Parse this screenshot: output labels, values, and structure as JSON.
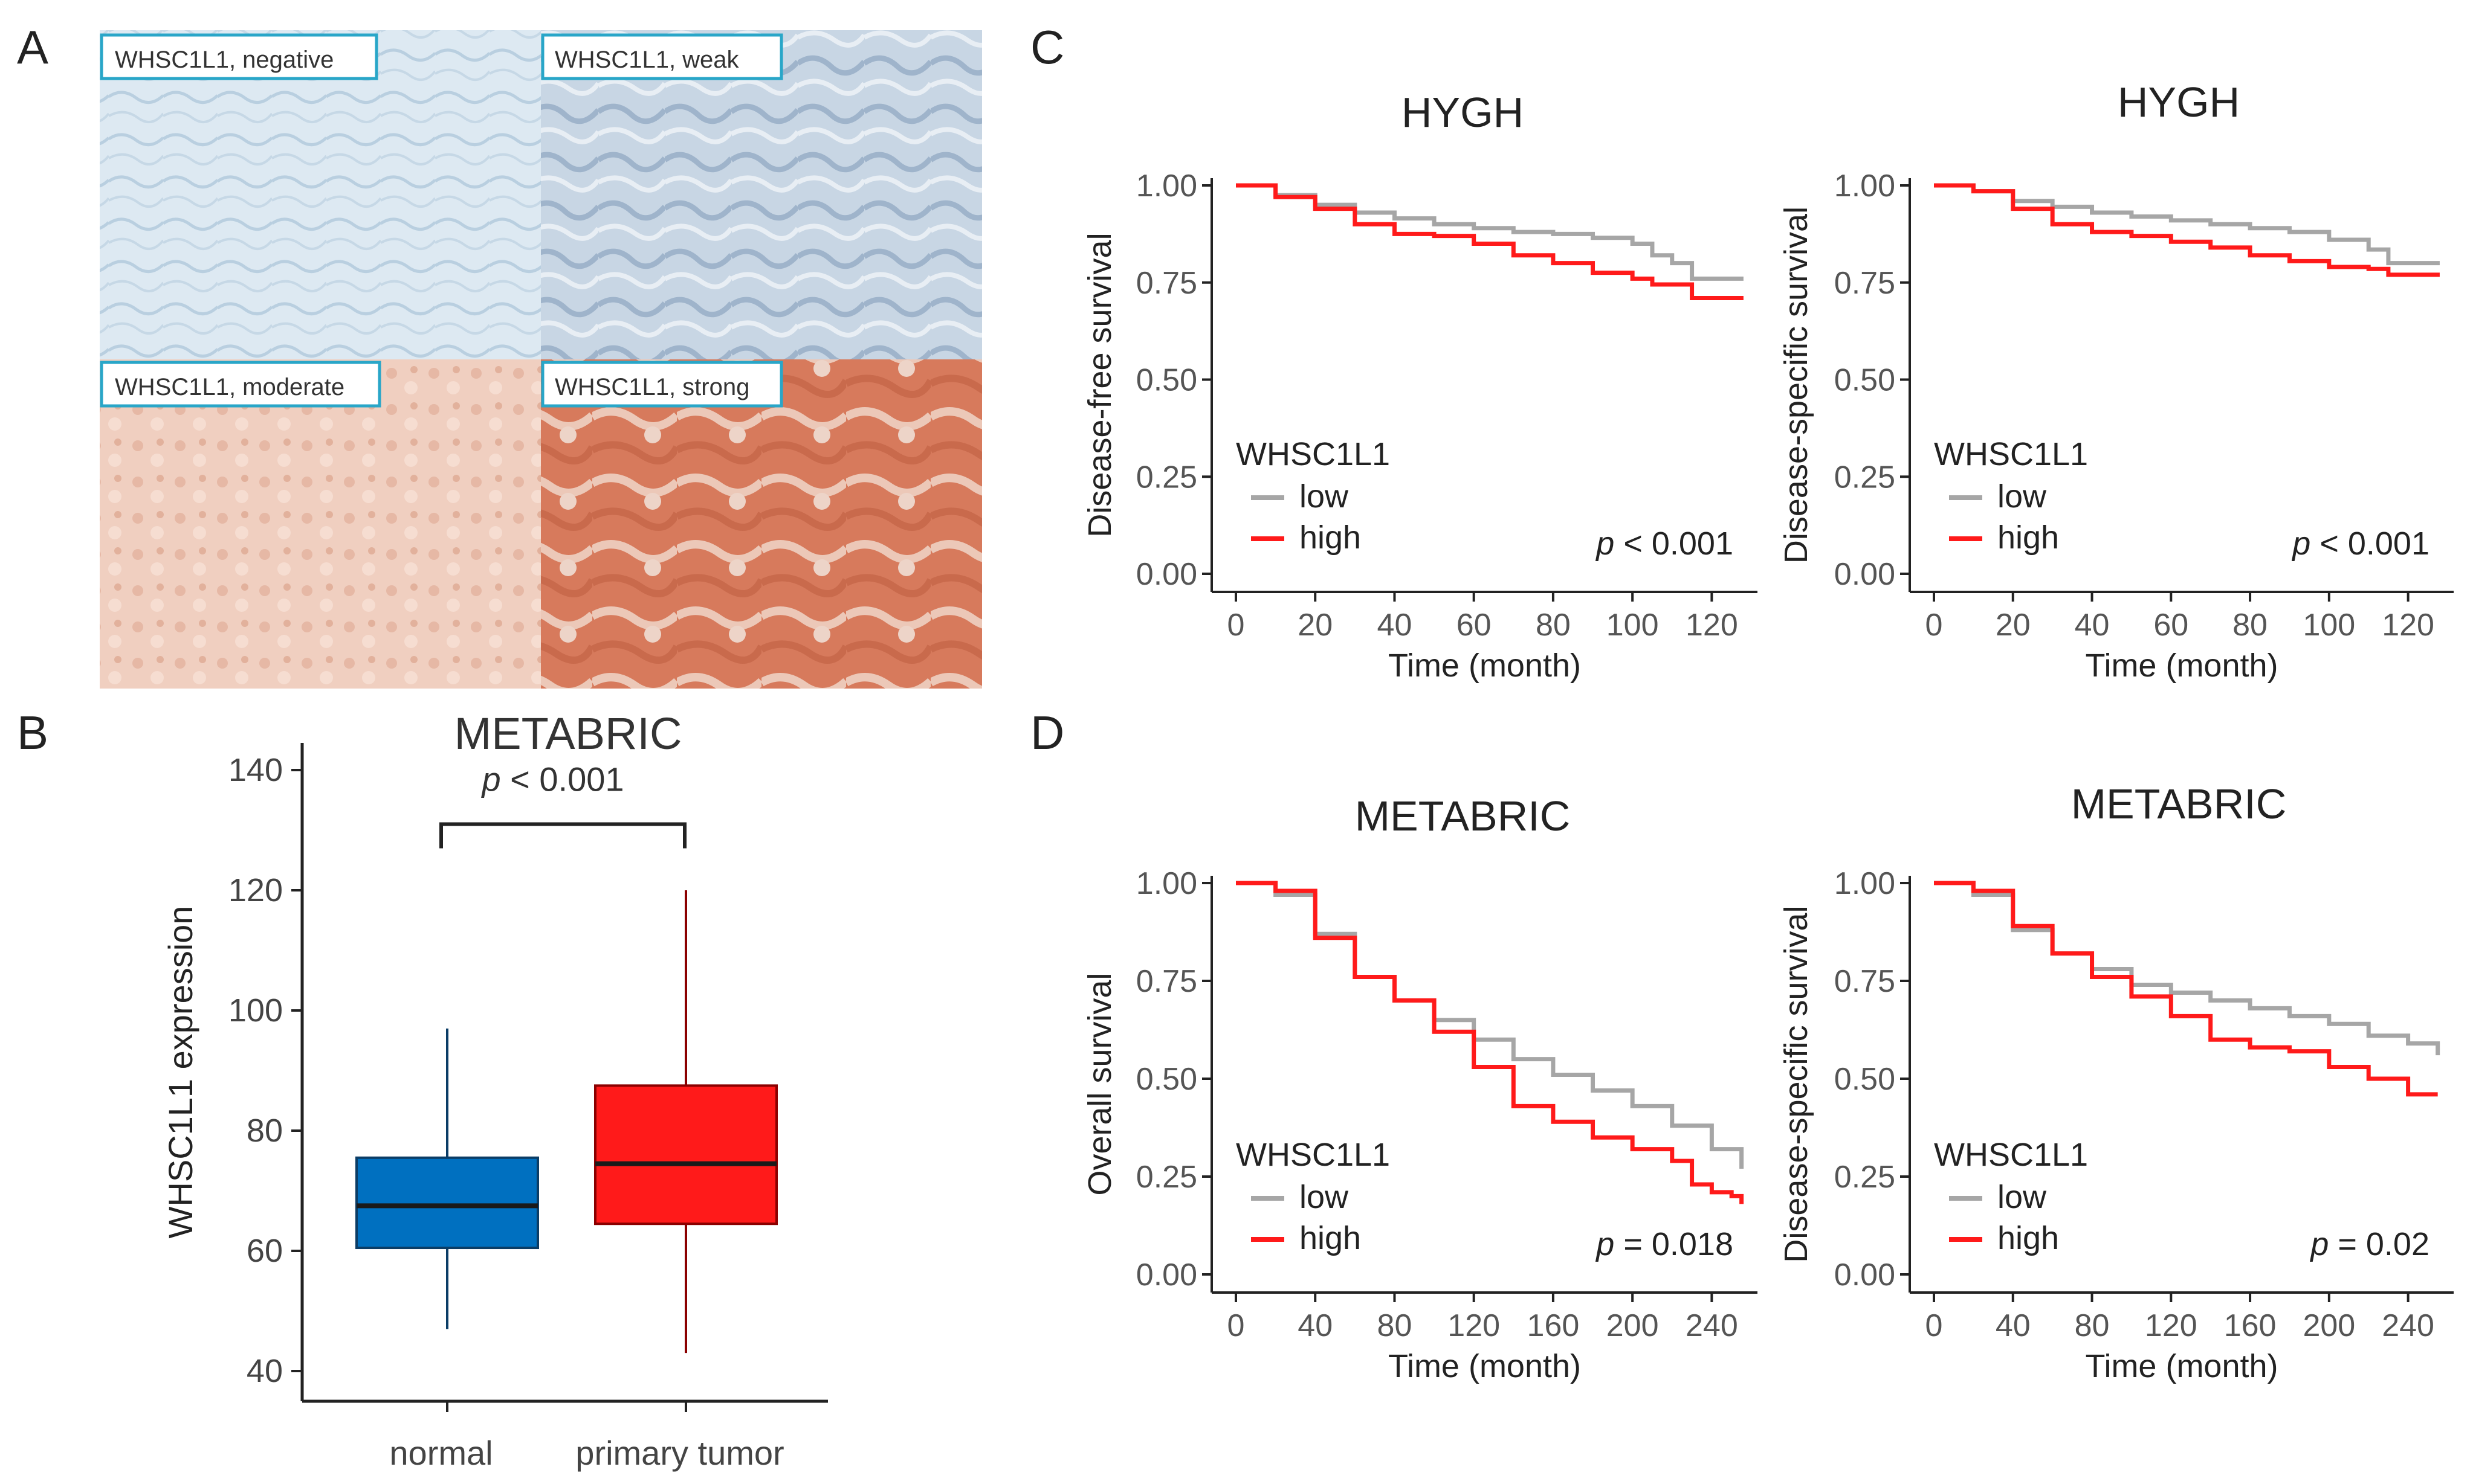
{
  "panel_letters": [
    "A",
    "B",
    "C",
    "D"
  ],
  "ihc": {
    "tiles": [
      {
        "label": "WHSC1L1, negative",
        "stain": "negative"
      },
      {
        "label": "WHSC1L1, weak",
        "stain": "weak"
      },
      {
        "label": "WHSC1L1, moderate",
        "stain": "moderate"
      },
      {
        "label": "WHSC1L1, strong",
        "stain": "strong"
      }
    ],
    "colors": {
      "negative": "#dde9f2",
      "weak": "#c8d6e4",
      "moderate": "#f0cfc0",
      "strong": "#d77a5c",
      "label_border": "#29a6c8"
    }
  },
  "chart_data": [
    {
      "id": "B",
      "type": "box",
      "title": "METABRIC",
      "ylabel": "WHSC1L1 expression",
      "ylim": [
        40,
        140
      ],
      "yticks": [
        40,
        60,
        80,
        100,
        120,
        140
      ],
      "categories": [
        "normal",
        "primary tumor"
      ],
      "boxes": [
        {
          "name": "normal",
          "whisker_low": 47,
          "q1": 60.5,
          "median": 67.5,
          "q3": 75.5,
          "whisker_high": 97,
          "color": "#0070c0",
          "stroke": "#0b3d66"
        },
        {
          "name": "primary tumor",
          "whisker_low": 43,
          "q1": 64.5,
          "median": 74.5,
          "q3": 87.5,
          "whisker_high": 120,
          "color": "#ff1a1a",
          "stroke": "#8b0000"
        }
      ],
      "annotation": {
        "p_label": "p",
        "p_text": " < 0.001",
        "bracket_y": 131
      }
    },
    {
      "id": "C1",
      "type": "line",
      "title": "HYGH",
      "xlabel": "Time (month)",
      "ylabel": "Disease-free survival",
      "xlim": [
        0,
        130
      ],
      "ylim": [
        0,
        1
      ],
      "xticks": [
        0,
        20,
        40,
        60,
        80,
        100,
        120
      ],
      "yticks": [
        "0.00",
        "0.25",
        "0.50",
        "0.75",
        "1.00"
      ],
      "legend_title": "WHSC1L1",
      "p_label": "p",
      "p_text": " < 0.001",
      "series": [
        {
          "name": "low",
          "color": "#a6a6a6",
          "x": [
            0,
            10,
            20,
            30,
            40,
            50,
            60,
            70,
            80,
            90,
            100,
            105,
            110,
            115,
            120,
            128
          ],
          "y": [
            1.0,
            0.975,
            0.95,
            0.93,
            0.915,
            0.9,
            0.89,
            0.88,
            0.875,
            0.865,
            0.85,
            0.82,
            0.8,
            0.76,
            0.76,
            0.76
          ]
        },
        {
          "name": "high",
          "color": "#ff1a1a",
          "x": [
            0,
            10,
            20,
            30,
            40,
            50,
            60,
            70,
            80,
            90,
            100,
            105,
            110,
            115,
            120,
            128
          ],
          "y": [
            1.0,
            0.97,
            0.94,
            0.9,
            0.875,
            0.87,
            0.85,
            0.82,
            0.8,
            0.775,
            0.76,
            0.745,
            0.745,
            0.71,
            0.71,
            0.71
          ]
        }
      ]
    },
    {
      "id": "C2",
      "type": "line",
      "title": "HYGH",
      "xlabel": "Time (month)",
      "ylabel": "Disease-specific survival",
      "xlim": [
        0,
        130
      ],
      "ylim": [
        0,
        1
      ],
      "xticks": [
        0,
        20,
        40,
        60,
        80,
        100,
        120
      ],
      "yticks": [
        "0.00",
        "0.25",
        "0.50",
        "0.75",
        "1.00"
      ],
      "legend_title": "WHSC1L1",
      "p_label": "p",
      "p_text": " < 0.001",
      "series": [
        {
          "name": "low",
          "color": "#a6a6a6",
          "x": [
            0,
            10,
            20,
            30,
            40,
            50,
            60,
            70,
            80,
            90,
            100,
            110,
            115,
            120,
            128
          ],
          "y": [
            1.0,
            0.985,
            0.96,
            0.945,
            0.93,
            0.92,
            0.91,
            0.9,
            0.89,
            0.88,
            0.86,
            0.835,
            0.8,
            0.8,
            0.8
          ]
        },
        {
          "name": "high",
          "color": "#ff1a1a",
          "x": [
            0,
            10,
            20,
            30,
            40,
            50,
            60,
            70,
            80,
            90,
            100,
            110,
            115,
            120,
            128
          ],
          "y": [
            1.0,
            0.985,
            0.94,
            0.9,
            0.88,
            0.87,
            0.855,
            0.84,
            0.82,
            0.805,
            0.79,
            0.785,
            0.77,
            0.77,
            0.77
          ]
        }
      ]
    },
    {
      "id": "D1",
      "type": "line",
      "title": "METABRIC",
      "xlabel": "Time (month)",
      "ylabel": "Overall survival",
      "xlim": [
        0,
        260
      ],
      "ylim": [
        0,
        1
      ],
      "xticks": [
        0,
        40,
        80,
        120,
        160,
        200,
        240
      ],
      "yticks": [
        "0.00",
        "0.25",
        "0.50",
        "0.75",
        "1.00"
      ],
      "legend_title": "WHSC1L1",
      "p_label": "p",
      "p_text": " = 0.018",
      "series": [
        {
          "name": "low",
          "color": "#a6a6a6",
          "x": [
            0,
            20,
            40,
            60,
            80,
            100,
            120,
            140,
            160,
            180,
            200,
            220,
            240,
            255
          ],
          "y": [
            1.0,
            0.97,
            0.87,
            0.76,
            0.7,
            0.65,
            0.6,
            0.55,
            0.51,
            0.47,
            0.43,
            0.38,
            0.32,
            0.27
          ]
        },
        {
          "name": "high",
          "color": "#ff1a1a",
          "x": [
            0,
            20,
            40,
            60,
            80,
            100,
            120,
            140,
            160,
            180,
            200,
            220,
            230,
            240,
            250,
            255
          ],
          "y": [
            1.0,
            0.98,
            0.86,
            0.76,
            0.7,
            0.62,
            0.53,
            0.43,
            0.39,
            0.35,
            0.32,
            0.29,
            0.23,
            0.21,
            0.2,
            0.18
          ]
        }
      ]
    },
    {
      "id": "D2",
      "type": "line",
      "title": "METABRIC",
      "xlabel": "Time (month)",
      "ylabel": "Disease-specific survival",
      "xlim": [
        0,
        260
      ],
      "ylim": [
        0,
        1
      ],
      "xticks": [
        0,
        40,
        80,
        120,
        160,
        200,
        240
      ],
      "yticks": [
        "0.00",
        "0.25",
        "0.50",
        "0.75",
        "1.00"
      ],
      "legend_title": "WHSC1L1",
      "p_label": "p",
      "p_text": " = 0.02",
      "series": [
        {
          "name": "low",
          "color": "#a6a6a6",
          "x": [
            0,
            20,
            40,
            60,
            80,
            100,
            120,
            140,
            160,
            180,
            200,
            220,
            240,
            255
          ],
          "y": [
            1.0,
            0.97,
            0.88,
            0.82,
            0.78,
            0.74,
            0.72,
            0.7,
            0.68,
            0.66,
            0.64,
            0.61,
            0.59,
            0.56
          ]
        },
        {
          "name": "high",
          "color": "#ff1a1a",
          "x": [
            0,
            20,
            40,
            60,
            80,
            100,
            120,
            140,
            160,
            180,
            200,
            220,
            240,
            255
          ],
          "y": [
            1.0,
            0.98,
            0.89,
            0.82,
            0.76,
            0.71,
            0.66,
            0.6,
            0.58,
            0.57,
            0.53,
            0.5,
            0.46,
            0.46
          ]
        }
      ]
    }
  ]
}
